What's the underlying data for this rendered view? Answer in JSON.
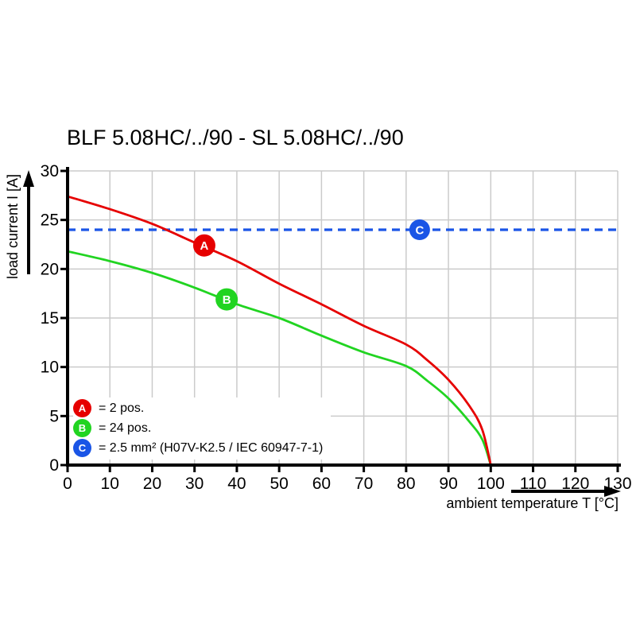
{
  "title": "BLF 5.08HC/../90 - SL 5.08HC/../90",
  "colors": {
    "red": "#e60000",
    "green": "#21d421",
    "blue": "#1a55e6",
    "grid": "#cbcbcb",
    "axis": "#000000",
    "background": "#ffffff"
  },
  "axes": {
    "x_label": "ambient temperature T [°C]",
    "y_label": "load current I [A]"
  },
  "chart_data": {
    "type": "line",
    "title": "BLF 5.08HC/../90 - SL 5.08HC/../90",
    "xlabel": "ambient temperature T [°C]",
    "ylabel": "load current I [A]",
    "xlim": [
      0,
      130
    ],
    "ylim": [
      0,
      30
    ],
    "x_ticks": [
      0,
      10,
      20,
      30,
      40,
      50,
      60,
      70,
      80,
      90,
      100,
      110,
      120,
      130
    ],
    "y_ticks": [
      0,
      5,
      10,
      15,
      20,
      25,
      30
    ],
    "grid": true,
    "legend_position": "lower-left",
    "series": [
      {
        "name": "A",
        "label": "= 2 pos.",
        "color": "#e60000",
        "style": "solid",
        "x": [
          0,
          10,
          20,
          30,
          40,
          50,
          60,
          70,
          80,
          85,
          90,
          95,
          98,
          100
        ],
        "y": [
          27.4,
          26.1,
          24.6,
          22.7,
          20.8,
          18.5,
          16.4,
          14.2,
          12.3,
          10.7,
          8.7,
          6.0,
          3.6,
          0
        ]
      },
      {
        "name": "B",
        "label": "= 24 pos.",
        "color": "#21d421",
        "style": "solid",
        "x": [
          0,
          10,
          20,
          30,
          40,
          50,
          60,
          70,
          80,
          85,
          90,
          95,
          98,
          100
        ],
        "y": [
          21.8,
          20.8,
          19.6,
          18.1,
          16.4,
          15.0,
          13.2,
          11.5,
          10.1,
          8.6,
          6.8,
          4.4,
          2.6,
          0
        ]
      },
      {
        "name": "C",
        "label": "= 2.5 mm² (H07V-K2.5 / IEC 60947-7-1)",
        "color": "#1a55e6",
        "style": "dashed",
        "x": [
          0,
          130
        ],
        "y": [
          24,
          24
        ]
      }
    ],
    "markers": [
      {
        "letter": "A",
        "color": "#e60000",
        "t": 32.3,
        "i": 22.4,
        "r": 14
      },
      {
        "letter": "B",
        "color": "#21d421",
        "t": 37.6,
        "i": 16.9,
        "r": 14
      },
      {
        "letter": "C",
        "color": "#1a55e6",
        "t": 83.2,
        "i": 24.0,
        "r": 13
      }
    ]
  }
}
